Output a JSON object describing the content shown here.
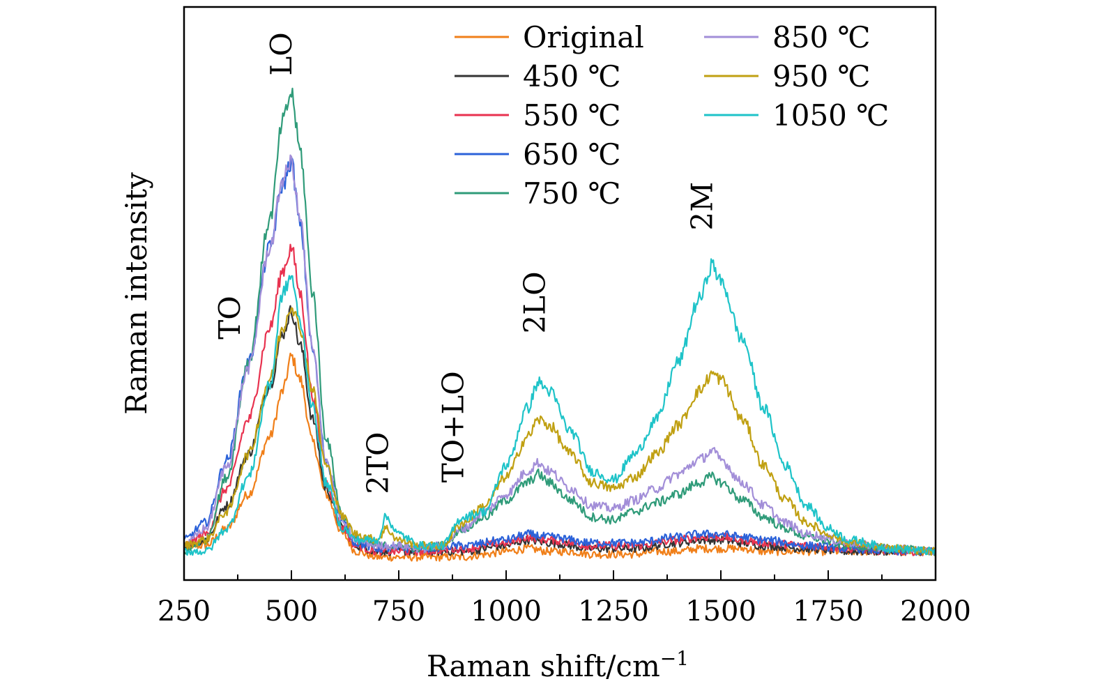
{
  "chart_data": {
    "type": "line",
    "xlabel": "Raman shift/cm",
    "xlabel_sup": "−1",
    "ylabel": "Raman intensity",
    "xlim": [
      250,
      2000
    ],
    "ylim": [
      0,
      100
    ],
    "x_ticks": [
      250,
      500,
      750,
      1000,
      1250,
      1500,
      1750,
      2000
    ],
    "x_tick_labels": [
      "250",
      "500",
      "750",
      "1000",
      "1250",
      "1500",
      "1750",
      "2000"
    ],
    "y_ticks_shown": false,
    "grid": false,
    "legend_position": "top-right",
    "peak_labels": [
      {
        "text": "TO",
        "x": 380,
        "y": 42
      },
      {
        "text": "LO",
        "x": 500,
        "y": 88
      },
      {
        "text": "2TO",
        "x": 725,
        "y": 15
      },
      {
        "text": "TO+LO",
        "x": 900,
        "y": 17
      },
      {
        "text": "2LO",
        "x": 1090,
        "y": 43
      },
      {
        "text": "2M",
        "x": 1480,
        "y": 61
      }
    ],
    "series": [
      {
        "name": "Original",
        "color": "#f07f19",
        "points": [
          [
            250,
            6
          ],
          [
            300,
            6
          ],
          [
            350,
            9
          ],
          [
            400,
            15
          ],
          [
            450,
            25
          ],
          [
            480,
            33
          ],
          [
            500,
            39
          ],
          [
            520,
            35
          ],
          [
            550,
            24
          ],
          [
            580,
            15
          ],
          [
            620,
            8
          ],
          [
            650,
            5
          ],
          [
            700,
            4
          ],
          [
            750,
            4
          ],
          [
            800,
            4
          ],
          [
            850,
            4
          ],
          [
            900,
            4
          ],
          [
            950,
            4.5
          ],
          [
            1000,
            5
          ],
          [
            1050,
            5.5
          ],
          [
            1100,
            5
          ],
          [
            1150,
            5
          ],
          [
            1200,
            4.5
          ],
          [
            1250,
            4.5
          ],
          [
            1300,
            4.5
          ],
          [
            1350,
            5
          ],
          [
            1400,
            5
          ],
          [
            1450,
            5.5
          ],
          [
            1500,
            5.5
          ],
          [
            1550,
            5.5
          ],
          [
            1600,
            5
          ],
          [
            1700,
            5
          ],
          [
            1800,
            5
          ],
          [
            1900,
            5
          ],
          [
            2000,
            5
          ]
        ]
      },
      {
        "name": "450 ℃",
        "color": "#333333",
        "points": [
          [
            250,
            6
          ],
          [
            300,
            7
          ],
          [
            350,
            13
          ],
          [
            400,
            22
          ],
          [
            450,
            34
          ],
          [
            480,
            43
          ],
          [
            500,
            47
          ],
          [
            520,
            41
          ],
          [
            550,
            28
          ],
          [
            580,
            16
          ],
          [
            620,
            9
          ],
          [
            650,
            6
          ],
          [
            700,
            5
          ],
          [
            750,
            5
          ],
          [
            800,
            5
          ],
          [
            900,
            5
          ],
          [
            1000,
            6
          ],
          [
            1050,
            7
          ],
          [
            1100,
            6.5
          ],
          [
            1200,
            5.5
          ],
          [
            1300,
            5.5
          ],
          [
            1400,
            6.5
          ],
          [
            1450,
            7
          ],
          [
            1500,
            7
          ],
          [
            1550,
            6.5
          ],
          [
            1600,
            6
          ],
          [
            1700,
            5.5
          ],
          [
            1800,
            5
          ],
          [
            1900,
            5
          ],
          [
            2000,
            5
          ]
        ]
      },
      {
        "name": "550 ℃",
        "color": "#e8324f",
        "points": [
          [
            250,
            6
          ],
          [
            300,
            8
          ],
          [
            350,
            16
          ],
          [
            400,
            28
          ],
          [
            450,
            44
          ],
          [
            480,
            54
          ],
          [
            500,
            58
          ],
          [
            520,
            50
          ],
          [
            550,
            32
          ],
          [
            580,
            17
          ],
          [
            620,
            9
          ],
          [
            650,
            6
          ],
          [
            700,
            5
          ],
          [
            750,
            5
          ],
          [
            800,
            5
          ],
          [
            900,
            5.5
          ],
          [
            1000,
            6.5
          ],
          [
            1050,
            7.5
          ],
          [
            1100,
            7
          ],
          [
            1200,
            6
          ],
          [
            1300,
            6
          ],
          [
            1400,
            7
          ],
          [
            1450,
            7.5
          ],
          [
            1500,
            7.5
          ],
          [
            1550,
            7
          ],
          [
            1600,
            6.5
          ],
          [
            1700,
            6
          ],
          [
            1800,
            5.5
          ],
          [
            1900,
            5
          ],
          [
            2000,
            5
          ]
        ]
      },
      {
        "name": "650 ℃",
        "color": "#2b62d9",
        "points": [
          [
            250,
            7
          ],
          [
            300,
            10
          ],
          [
            350,
            21
          ],
          [
            400,
            38
          ],
          [
            450,
            58
          ],
          [
            480,
            69
          ],
          [
            500,
            73
          ],
          [
            520,
            62
          ],
          [
            550,
            40
          ],
          [
            580,
            21
          ],
          [
            620,
            10
          ],
          [
            650,
            6.5
          ],
          [
            700,
            5.5
          ],
          [
            750,
            5.5
          ],
          [
            800,
            5.5
          ],
          [
            900,
            6
          ],
          [
            1000,
            7
          ],
          [
            1050,
            8
          ],
          [
            1100,
            7.5
          ],
          [
            1200,
            6.5
          ],
          [
            1300,
            6.5
          ],
          [
            1400,
            7.5
          ],
          [
            1450,
            8
          ],
          [
            1500,
            8
          ],
          [
            1550,
            7.5
          ],
          [
            1600,
            7
          ],
          [
            1700,
            6
          ],
          [
            1800,
            5.5
          ],
          [
            1900,
            5
          ],
          [
            2000,
            5
          ]
        ]
      },
      {
        "name": "750 ℃",
        "color": "#2f9b79",
        "points": [
          [
            250,
            5
          ],
          [
            300,
            7
          ],
          [
            350,
            18
          ],
          [
            400,
            38
          ],
          [
            450,
            63
          ],
          [
            480,
            80
          ],
          [
            500,
            85
          ],
          [
            520,
            75
          ],
          [
            550,
            50
          ],
          [
            580,
            25
          ],
          [
            620,
            11
          ],
          [
            650,
            7
          ],
          [
            700,
            6
          ],
          [
            750,
            6
          ],
          [
            800,
            5.5
          ],
          [
            850,
            6
          ],
          [
            900,
            9
          ],
          [
            950,
            11
          ],
          [
            1000,
            14
          ],
          [
            1050,
            17
          ],
          [
            1075,
            18.5
          ],
          [
            1100,
            17
          ],
          [
            1150,
            14
          ],
          [
            1200,
            11
          ],
          [
            1250,
            10.5
          ],
          [
            1300,
            12
          ],
          [
            1350,
            13.5
          ],
          [
            1400,
            15
          ],
          [
            1450,
            17
          ],
          [
            1480,
            18
          ],
          [
            1500,
            17
          ],
          [
            1550,
            14
          ],
          [
            1600,
            11
          ],
          [
            1650,
            9
          ],
          [
            1700,
            7.5
          ],
          [
            1800,
            6
          ],
          [
            1900,
            5.5
          ],
          [
            2000,
            5
          ]
        ]
      },
      {
        "name": "850 ℃",
        "color": "#a28ed8",
        "points": [
          [
            250,
            6
          ],
          [
            300,
            9
          ],
          [
            350,
            20
          ],
          [
            400,
            37
          ],
          [
            450,
            58
          ],
          [
            480,
            70
          ],
          [
            500,
            73
          ],
          [
            520,
            63
          ],
          [
            550,
            40
          ],
          [
            580,
            21
          ],
          [
            620,
            10
          ],
          [
            650,
            7
          ],
          [
            700,
            6
          ],
          [
            750,
            6
          ],
          [
            800,
            5.5
          ],
          [
            850,
            6
          ],
          [
            900,
            9
          ],
          [
            950,
            12
          ],
          [
            1000,
            15
          ],
          [
            1050,
            19
          ],
          [
            1075,
            20.5
          ],
          [
            1100,
            19
          ],
          [
            1150,
            16
          ],
          [
            1200,
            13
          ],
          [
            1250,
            12.5
          ],
          [
            1300,
            14
          ],
          [
            1350,
            16
          ],
          [
            1400,
            18.5
          ],
          [
            1450,
            21
          ],
          [
            1480,
            22.5
          ],
          [
            1500,
            21
          ],
          [
            1550,
            17
          ],
          [
            1600,
            13
          ],
          [
            1650,
            10
          ],
          [
            1700,
            8
          ],
          [
            1800,
            6.5
          ],
          [
            1900,
            5.5
          ],
          [
            2000,
            5
          ]
        ]
      },
      {
        "name": "950 ℃",
        "color": "#c0a012",
        "points": [
          [
            250,
            6
          ],
          [
            300,
            7
          ],
          [
            350,
            12
          ],
          [
            400,
            22
          ],
          [
            450,
            35
          ],
          [
            480,
            44
          ],
          [
            500,
            48
          ],
          [
            520,
            44
          ],
          [
            550,
            33
          ],
          [
            580,
            20
          ],
          [
            620,
            11
          ],
          [
            650,
            8
          ],
          [
            700,
            7
          ],
          [
            720,
            9
          ],
          [
            750,
            7
          ],
          [
            800,
            6
          ],
          [
            850,
            6
          ],
          [
            900,
            10
          ],
          [
            950,
            13
          ],
          [
            1000,
            18
          ],
          [
            1050,
            25
          ],
          [
            1075,
            28
          ],
          [
            1100,
            27
          ],
          [
            1150,
            22
          ],
          [
            1200,
            17
          ],
          [
            1250,
            16
          ],
          [
            1300,
            18
          ],
          [
            1350,
            22
          ],
          [
            1400,
            27
          ],
          [
            1450,
            33
          ],
          [
            1480,
            36
          ],
          [
            1500,
            35
          ],
          [
            1550,
            28
          ],
          [
            1600,
            20
          ],
          [
            1650,
            14
          ],
          [
            1700,
            10
          ],
          [
            1750,
            8
          ],
          [
            1800,
            6.5
          ],
          [
            1900,
            5.5
          ],
          [
            2000,
            5
          ]
        ]
      },
      {
        "name": "1050 ℃",
        "color": "#1ec3c8",
        "points": [
          [
            250,
            5
          ],
          [
            300,
            5
          ],
          [
            350,
            9
          ],
          [
            400,
            18
          ],
          [
            450,
            34
          ],
          [
            480,
            50
          ],
          [
            500,
            53
          ],
          [
            520,
            45
          ],
          [
            550,
            30
          ],
          [
            580,
            17
          ],
          [
            620,
            9
          ],
          [
            650,
            7
          ],
          [
            700,
            7
          ],
          [
            720,
            11
          ],
          [
            750,
            8
          ],
          [
            800,
            6
          ],
          [
            850,
            6
          ],
          [
            900,
            11
          ],
          [
            950,
            12
          ],
          [
            1000,
            20
          ],
          [
            1050,
            30
          ],
          [
            1075,
            34.5
          ],
          [
            1100,
            33
          ],
          [
            1150,
            26
          ],
          [
            1200,
            19
          ],
          [
            1250,
            17.5
          ],
          [
            1300,
            22
          ],
          [
            1350,
            28
          ],
          [
            1400,
            38
          ],
          [
            1450,
            49
          ],
          [
            1480,
            55
          ],
          [
            1500,
            52
          ],
          [
            1550,
            42
          ],
          [
            1600,
            30
          ],
          [
            1650,
            20
          ],
          [
            1700,
            13
          ],
          [
            1750,
            9
          ],
          [
            1800,
            7
          ],
          [
            1900,
            5.5
          ],
          [
            2000,
            5
          ]
        ]
      }
    ]
  }
}
